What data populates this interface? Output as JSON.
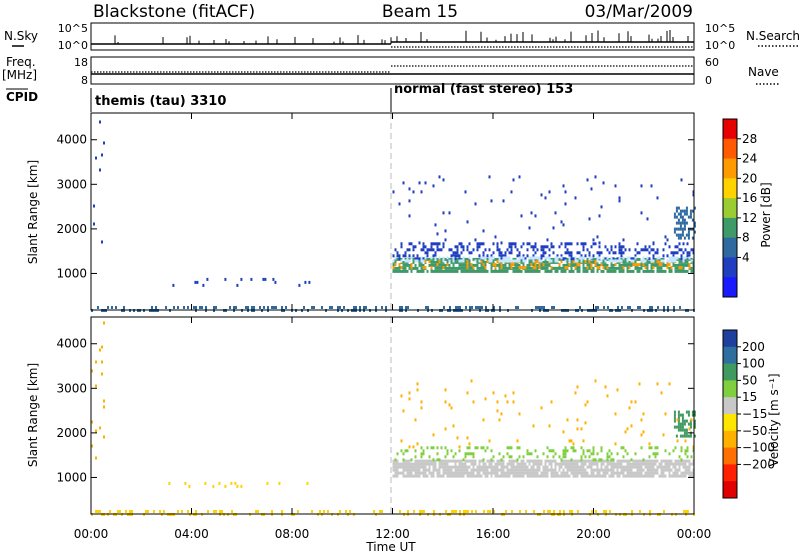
{
  "header": {
    "radar": "Blackstone (fitACF)",
    "beam": "Beam 15",
    "date": "03/Mar/2009"
  },
  "top_panels": {
    "nsky_label": "N.Sky",
    "nsearch_label": "N.Search",
    "freq_label_1": "Freq.",
    "freq_label_2": "[MHz]",
    "nave_label": "Nave",
    "cpid_label": "CPID",
    "nsky_ticks": [
      "10^5",
      "10^0"
    ],
    "nsearch_ticks": [
      "10^5",
      "10^0"
    ],
    "freq_ticks": [
      "18",
      "8"
    ],
    "nave_ticks": [
      "60",
      "0"
    ],
    "cpid_segments": [
      {
        "label": "themis (tau) 3310",
        "start_hour": 0,
        "end_hour": 12
      },
      {
        "label": "normal (fast stereo) 153",
        "start_hour": 12,
        "end_hour": 24
      }
    ]
  },
  "colorbars": {
    "power": {
      "title": "Power [dB]",
      "ticks": [
        "28",
        "24",
        "20",
        "16",
        "12",
        "8",
        "4"
      ],
      "colors": [
        "#e60000",
        "#ff5a00",
        "#ff9a00",
        "#ffd200",
        "#9acd32",
        "#3f9a6a",
        "#2e6aa0",
        "#1f3fc0",
        "#1a1aff"
      ]
    },
    "velocity": {
      "title": "Velocity [m s⁻¹]",
      "ticks": [
        "200",
        "100",
        "50",
        "15",
        "−15",
        "−50",
        "−100",
        "−200"
      ],
      "colors": [
        "#1f3f9f",
        "#2f6fa0",
        "#3f9a5f",
        "#7fcf3f",
        "#c8c8c8",
        "#ffe600",
        "#ffb000",
        "#ff7000",
        "#ff2000",
        "#e00000"
      ]
    }
  },
  "chart_data": [
    {
      "type": "heatmap",
      "name": "power",
      "ylabel": "Slant Range [km]",
      "xlabel": "",
      "xlim_hours": [
        0,
        24
      ],
      "ylim_km": [
        180,
        4600
      ],
      "yticks": [
        "4000",
        "3000",
        "2000",
        "1000"
      ],
      "ytick_values": [
        4000,
        3000,
        2000,
        1000
      ],
      "scatter_regions": [
        {
          "x0": 0.0,
          "x1": 24.0,
          "y0": 180,
          "y1": 270,
          "density": 0.35,
          "color": "#2e6aa0"
        },
        {
          "x0": 12.0,
          "x1": 24.0,
          "y0": 1050,
          "y1": 1350,
          "density": 0.75,
          "color": "#3f9a6a"
        },
        {
          "x0": 12.0,
          "x1": 24.0,
          "y0": 1100,
          "y1": 1300,
          "density": 0.25,
          "color": "#ff9a00"
        },
        {
          "x0": 12.0,
          "x1": 24.0,
          "y0": 1350,
          "y1": 1700,
          "density": 0.35,
          "color": "#1f3fc0"
        },
        {
          "x0": 12.0,
          "x1": 24.0,
          "y0": 1300,
          "y1": 1380,
          "density": 0.5,
          "color": "#c8e6ff"
        },
        {
          "x0": 23.2,
          "x1": 24.0,
          "y0": 1800,
          "y1": 2500,
          "density": 0.5,
          "color": "#2e6aa0"
        },
        {
          "x0": 3.0,
          "x1": 8.8,
          "y0": 700,
          "y1": 900,
          "density": 0.08,
          "color": "#1f3fc0"
        },
        {
          "x0": 0.0,
          "x1": 0.5,
          "y0": 1400,
          "y1": 4500,
          "density": 0.05,
          "color": "#1f3fc0"
        },
        {
          "x0": 12.0,
          "x1": 24.0,
          "y0": 1700,
          "y1": 3200,
          "density": 0.02,
          "color": "#1f3fc0"
        }
      ]
    },
    {
      "type": "heatmap",
      "name": "velocity",
      "ylabel": "Slant Range [km]",
      "xlabel": "Time UT",
      "xlim_hours": [
        0,
        24
      ],
      "ylim_km": [
        180,
        4600
      ],
      "xticks": [
        "00:00",
        "04:00",
        "08:00",
        "12:00",
        "16:00",
        "20:00",
        "00:00"
      ],
      "xtick_hours": [
        0,
        4,
        8,
        12,
        16,
        20,
        24
      ],
      "yticks": [
        "4000",
        "3000",
        "2000",
        "1000"
      ],
      "ytick_values": [
        4000,
        3000,
        2000,
        1000
      ],
      "scatter_regions": [
        {
          "x0": 0.0,
          "x1": 24.0,
          "y0": 180,
          "y1": 270,
          "density": 0.3,
          "color": "#ffd200"
        },
        {
          "x0": 12.0,
          "x1": 24.0,
          "y0": 1050,
          "y1": 1400,
          "density": 0.85,
          "color": "#c8c8c8"
        },
        {
          "x0": 12.0,
          "x1": 24.0,
          "y0": 1400,
          "y1": 1700,
          "density": 0.2,
          "color": "#7fcf3f"
        },
        {
          "x0": 23.2,
          "x1": 24.0,
          "y0": 1900,
          "y1": 2500,
          "density": 0.5,
          "color": "#3f9a5f"
        },
        {
          "x0": 3.0,
          "x1": 8.8,
          "y0": 700,
          "y1": 900,
          "density": 0.08,
          "color": "#ffd200"
        },
        {
          "x0": 0.0,
          "x1": 0.5,
          "y0": 1400,
          "y1": 4500,
          "density": 0.05,
          "color": "#ffb000"
        },
        {
          "x0": 12.0,
          "x1": 24.0,
          "y0": 1700,
          "y1": 3200,
          "density": 0.02,
          "color": "#ffb000"
        }
      ]
    }
  ]
}
